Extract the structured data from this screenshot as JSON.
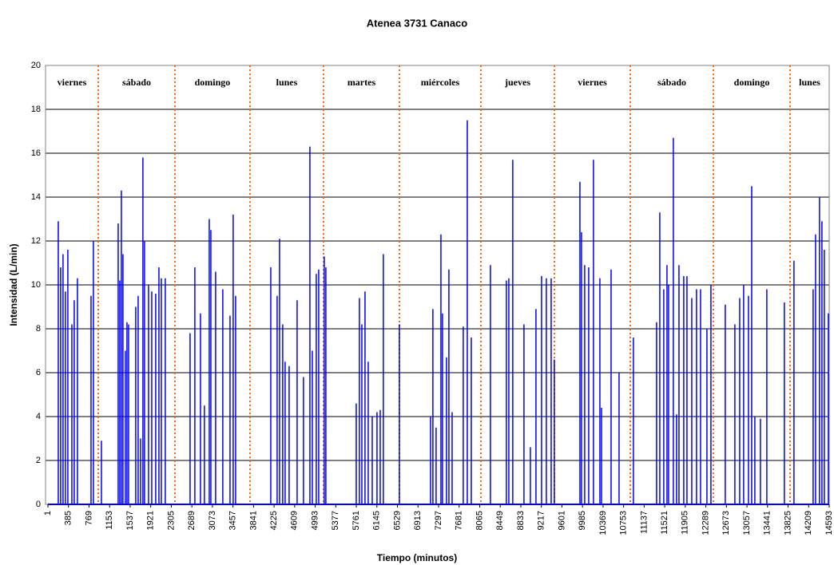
{
  "chart_data": {
    "type": "bar",
    "title": "Atenea 3731 Canaco",
    "x_label": "Tiempo (minutos)",
    "y_label": "Intensidad (L/min)",
    "color": "#0000ff",
    "xlim": [
      1,
      14593
    ],
    "ylim": [
      0,
      20
    ],
    "yticks": [
      0,
      2,
      4,
      6,
      8,
      10,
      12,
      14,
      16,
      18,
      20
    ],
    "xticks": [
      1,
      385,
      769,
      1153,
      1537,
      1921,
      2305,
      2689,
      3073,
      3457,
      3841,
      4225,
      4609,
      4993,
      5377,
      5761,
      6145,
      6529,
      6913,
      7297,
      7681,
      8065,
      8449,
      8833,
      9217,
      9601,
      9985,
      10369,
      10753,
      11137,
      11521,
      11905,
      12289,
      12673,
      13057,
      13441,
      13825,
      14209,
      14593
    ],
    "grid": true,
    "day_labels": [
      "viernes",
      "sábado",
      "domingo",
      "lunes",
      "martes",
      "miércoles",
      "jueves",
      "viernes",
      "sábado",
      "domingo",
      "lunes"
    ],
    "separators": [
      941,
      2373,
      3775,
      5148,
      6566,
      8088,
      9461,
      10878,
      12430,
      13862
    ],
    "separator_color": "#ff6600",
    "x": [
      194,
      239,
      283,
      328,
      373,
      448,
      492,
      552,
      806,
      850,
      1000,
      1313,
      1343,
      1373,
      1402,
      1447,
      1477,
      1507,
      1641,
      1686,
      1731,
      1775,
      1805,
      1880,
      1940,
      2014,
      2074,
      2119,
      2193,
      2656,
      2745,
      2850,
      2924,
      3014,
      3044,
      3133,
      3267,
      3402,
      3461,
      3506,
      4163,
      4282,
      4327,
      4386,
      4431,
      4506,
      4655,
      4774,
      4894,
      4939,
      5013,
      5058,
      5162,
      5192,
      5759,
      5819,
      5864,
      5923,
      5983,
      6058,
      6147,
      6207,
      6266,
      6565,
      7147,
      7191,
      7251,
      7341,
      7370,
      7445,
      7490,
      7550,
      7758,
      7833,
      7908,
      8266,
      8564,
      8609,
      8683,
      8892,
      9012,
      9116,
      9221,
      9310,
      9400,
      9459,
      9937,
      9966,
      10026,
      10101,
      10190,
      10310,
      10340,
      10519,
      10668,
      10936,
      11369,
      11429,
      11503,
      11563,
      11593,
      11682,
      11742,
      11787,
      11876,
      11936,
      12026,
      12115,
      12190,
      12309,
      12384,
      12652,
      12831,
      12921,
      12995,
      13085,
      13145,
      13204,
      13309,
      13428,
      13756,
      13935,
      14293,
      14338,
      14412,
      14457,
      14502,
      14577
    ],
    "values": [
      12.9,
      10.8,
      11.4,
      9.7,
      11.6,
      8.2,
      9.3,
      10.3,
      9.5,
      12,
      2.9,
      12.8,
      10.2,
      14.3,
      11.4,
      7,
      8.3,
      8.2,
      9,
      9.5,
      3,
      15.8,
      12,
      10,
      9.7,
      9.6,
      10.8,
      10.3,
      10.3,
      7.8,
      10.8,
      8.7,
      4.5,
      13,
      12.5,
      10.6,
      9.8,
      8.6,
      13.2,
      9.5,
      10.8,
      9.5,
      12.1,
      8.2,
      6.5,
      6.3,
      9.3,
      5.8,
      16.3,
      7,
      10.5,
      10.7,
      11.3,
      10.8,
      4.6,
      9.4,
      8.2,
      9.7,
      6.5,
      4,
      4.2,
      4.3,
      11.4,
      8.2,
      4,
      8.9,
      3.5,
      12.3,
      8.7,
      6.7,
      10.7,
      4.2,
      8.1,
      17.5,
      7.6,
      10.9,
      10.2,
      10.3,
      15.7,
      8.2,
      2.6,
      8.9,
      10.4,
      10.3,
      10.3,
      6.6,
      14.7,
      12.4,
      10.9,
      10.8,
      15.7,
      10.3,
      4.4,
      10.7,
      6,
      7.6,
      8.3,
      13.3,
      9.8,
      10.9,
      10,
      16.7,
      4.1,
      10.9,
      10.4,
      10.4,
      9.4,
      9.8,
      9.8,
      8,
      10,
      9.1,
      8.2,
      9.4,
      10,
      9.5,
      14.5,
      4,
      3.9,
      9.8,
      9.2,
      11.1,
      9.8,
      12.3,
      14,
      12.9,
      11.6,
      8.7
    ]
  }
}
